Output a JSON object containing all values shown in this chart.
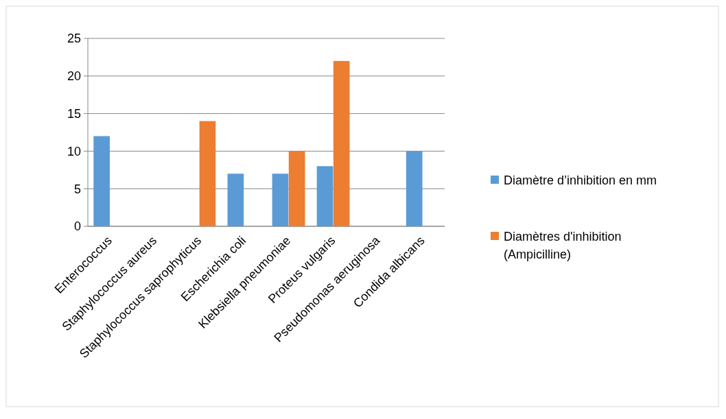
{
  "chart_data": {
    "type": "bar",
    "categories": [
      "Enterococcus",
      "Staphylococcus aureus",
      "Staphylococcus saprophyticus",
      "Escherichia coli",
      "Klebsiella pneumoniae",
      "Proteus vulgaris",
      "Pseudomonas aeruginosa",
      "Condida albicans"
    ],
    "series": [
      {
        "name": "Diamètre d’inhibition en mm",
        "color": "#5b9bd5",
        "values": [
          12,
          0,
          0,
          7,
          7,
          8,
          0,
          10
        ]
      },
      {
        "name": "Diamètres d'inhibition (Ampicilline)",
        "color": "#ed7d31",
        "values": [
          0,
          0,
          14,
          0,
          10,
          22,
          0,
          0
        ]
      }
    ],
    "ylim": [
      0,
      25
    ],
    "yticks": [
      0,
      5,
      10,
      15,
      20,
      25
    ],
    "grid": "y",
    "legend": "right"
  }
}
